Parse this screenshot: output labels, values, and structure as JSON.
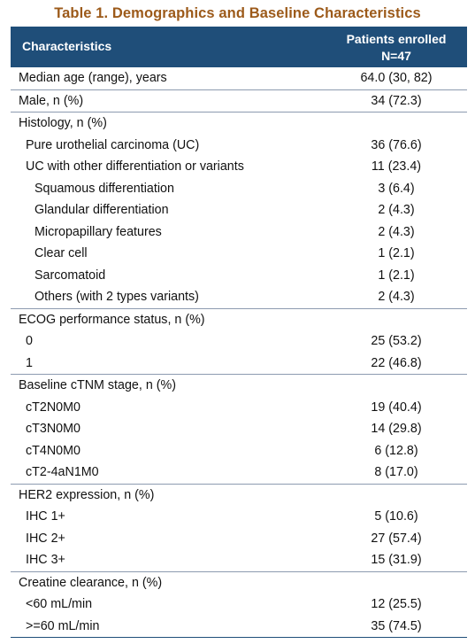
{
  "title": "Table 1. Demographics and Baseline Characteristics",
  "header": {
    "col1": "Characteristics",
    "col2_line1": "Patients enrolled",
    "col2_line2": "N=47"
  },
  "rows": [
    {
      "label": "Median age (range), years",
      "value": "64.0 (30, 82)"
    },
    {
      "label": "Male, n (%)",
      "value": "34 (72.3)"
    },
    {
      "label": "Histology, n (%)",
      "value": ""
    },
    {
      "label": "Pure urothelial carcinoma (UC)",
      "value": "36 (76.6)"
    },
    {
      "label": "UC with other differentiation or variants",
      "value": "11 (23.4)"
    },
    {
      "label": "Squamous differentiation",
      "value": "3 (6.4)"
    },
    {
      "label": "Glandular differentiation",
      "value": "2 (4.3)"
    },
    {
      "label": "Micropapillary features",
      "value": "2 (4.3)"
    },
    {
      "label": "Clear cell",
      "value": "1 (2.1)"
    },
    {
      "label": "Sarcomatoid",
      "value": "1 (2.1)"
    },
    {
      "label": "Others (with 2 types variants)",
      "value": "2 (4.3)"
    },
    {
      "label": "ECOG performance status, n (%)",
      "value": ""
    },
    {
      "label": "0",
      "value": "25 (53.2)"
    },
    {
      "label": "1",
      "value": "22 (46.8)"
    },
    {
      "label": "Baseline cTNM stage, n (%)",
      "value": ""
    },
    {
      "label": "cT2N0M0",
      "value": "19 (40.4)"
    },
    {
      "label": "cT3N0M0",
      "value": "14 (29.8)"
    },
    {
      "label": "cT4N0M0",
      "value": "6 (12.8)"
    },
    {
      "label": "cT2-4aN1M0",
      "value": "8 (17.0)"
    },
    {
      "label": "HER2 expression, n (%)",
      "value": ""
    },
    {
      "label": "IHC 1+",
      "value": "5 (10.6)"
    },
    {
      "label": "IHC 2+",
      "value": "27 (57.4)"
    },
    {
      "label": "IHC 3+",
      "value": "15 (31.9)"
    },
    {
      "label": "Creatine clearance, n (%)",
      "value": ""
    },
    {
      "label": "<60 mL/min",
      "value": "12 (25.5)"
    },
    {
      "label": ">=60 mL/min",
      "value": "35 (74.5)"
    }
  ],
  "colors": {
    "title": "#9c5a1a",
    "header_bg": "#1f4e79",
    "header_text": "#ffffff",
    "rule": "#8d9bb0"
  }
}
